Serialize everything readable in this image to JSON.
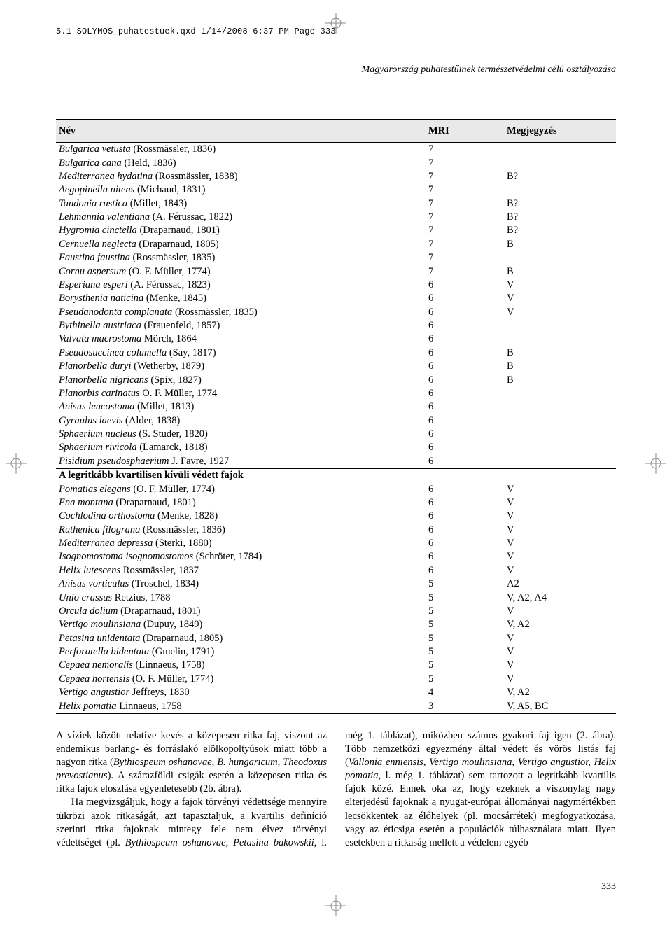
{
  "print_job_line": "5.1 SOLYMOS_puhatestuek.qxd  1/14/2008  6:37 PM  Page 333",
  "running_title": "Magyarország puhatestűinek természetvédelmi célú osztályozása",
  "page_number": "333",
  "table": {
    "headers": {
      "name": "Név",
      "mri": "MRI",
      "note": "Megjegyzés"
    },
    "rows": [
      {
        "name_it": "Bulgarica vetusta",
        "name_rest": " (Rossmässler, 1836)",
        "mri": "7",
        "note": ""
      },
      {
        "name_it": "Bulgarica cana",
        "name_rest": " (Held, 1836)",
        "mri": "7",
        "note": ""
      },
      {
        "name_it": "Mediterranea hydatina",
        "name_rest": " (Rossmässler, 1838)",
        "mri": "7",
        "note": "B?"
      },
      {
        "name_it": "Aegopinella nitens",
        "name_rest": " (Michaud, 1831)",
        "mri": "7",
        "note": ""
      },
      {
        "name_it": "Tandonia rustica",
        "name_rest": " (Millet, 1843)",
        "mri": "7",
        "note": "B?"
      },
      {
        "name_it": "Lehmannia valentiana",
        "name_rest": " (A. Férussac, 1822)",
        "mri": "7",
        "note": "B?"
      },
      {
        "name_it": "Hygromia cinctella",
        "name_rest": " (Draparnaud, 1801)",
        "mri": "7",
        "note": "B?"
      },
      {
        "name_it": "Cernuella neglecta",
        "name_rest": " (Draparnaud, 1805)",
        "mri": "7",
        "note": "B"
      },
      {
        "name_it": "Faustina faustina",
        "name_rest": " (Rossmässler, 1835)",
        "mri": "7",
        "note": ""
      },
      {
        "name_it": "Cornu aspersum",
        "name_rest": " (O. F. Müller, 1774)",
        "mri": "7",
        "note": "B"
      },
      {
        "name_it": "Esperiana esperi",
        "name_rest": " (A. Férussac, 1823)",
        "mri": "6",
        "note": "V"
      },
      {
        "name_it": "Borysthenia naticina",
        "name_rest": " (Menke, 1845)",
        "mri": "6",
        "note": "V"
      },
      {
        "name_it": "Pseudanodonta complanata",
        "name_rest": " (Rossmässler, 1835)",
        "mri": "6",
        "note": "V"
      },
      {
        "name_it": "Bythinella austriaca",
        "name_rest": " (Frauenfeld, 1857)",
        "mri": "6",
        "note": ""
      },
      {
        "name_it": "Valvata macrostoma",
        "name_rest": " Mörch, 1864",
        "mri": "6",
        "note": ""
      },
      {
        "name_it": "Pseudosuccinea columella",
        "name_rest": " (Say, 1817)",
        "mri": "6",
        "note": "B"
      },
      {
        "name_it": "Planorbella duryi",
        "name_rest": " (Wetherby, 1879)",
        "mri": "6",
        "note": "B"
      },
      {
        "name_it": "Planorbella nigricans",
        "name_rest": " (Spix, 1827)",
        "mri": "6",
        "note": "B"
      },
      {
        "name_it": "Planorbis carinatus",
        "name_rest": " O. F. Müller, 1774",
        "mri": "6",
        "note": ""
      },
      {
        "name_it": "Anisus leucostoma",
        "name_rest": " (Millet, 1813)",
        "mri": "6",
        "note": ""
      },
      {
        "name_it": "Gyraulus laevis",
        "name_rest": " (Alder, 1838)",
        "mri": "6",
        "note": ""
      },
      {
        "name_it": "Sphaerium nucleus",
        "name_rest": " (S. Studer, 1820)",
        "mri": "6",
        "note": ""
      },
      {
        "name_it": "Sphaerium rivicola",
        "name_rest": " (Lamarck, 1818)",
        "mri": "6",
        "note": ""
      },
      {
        "name_it": "Pisidium pseudosphaerium",
        "name_rest": " J. Favre, 1927",
        "mri": "6",
        "note": ""
      }
    ],
    "section_label": "A legritkább kvartilisen kívüli védett fajok",
    "rows2": [
      {
        "name_it": "Pomatias elegans",
        "name_rest": " (O. F. Müller, 1774)",
        "mri": "6",
        "note": "V"
      },
      {
        "name_it": "Ena montana",
        "name_rest": " (Draparnaud, 1801)",
        "mri": "6",
        "note": "V"
      },
      {
        "name_it": "Cochlodina orthostoma",
        "name_rest": " (Menke, 1828)",
        "mri": "6",
        "note": "V"
      },
      {
        "name_it": "Ruthenica filograna",
        "name_rest": " (Rossmässler, 1836)",
        "mri": "6",
        "note": "V"
      },
      {
        "name_it": "Mediterranea depressa",
        "name_rest": " (Sterki, 1880)",
        "mri": "6",
        "note": "V"
      },
      {
        "name_it": "Isognomostoma isognomostomos",
        "name_rest": " (Schröter, 1784)",
        "mri": "6",
        "note": "V"
      },
      {
        "name_it": "Helix lutescens",
        "name_rest": " Rossmässler, 1837",
        "mri": "6",
        "note": "V"
      },
      {
        "name_it": "Anisus vorticulus",
        "name_rest": " (Troschel, 1834)",
        "mri": "5",
        "note": "A2"
      },
      {
        "name_it": "Unio crassus",
        "name_rest": " Retzius, 1788",
        "mri": "5",
        "note": "V, A2, A4"
      },
      {
        "name_it": "Orcula dolium",
        "name_rest": " (Draparnaud, 1801)",
        "mri": "5",
        "note": "V"
      },
      {
        "name_it": "Vertigo moulinsiana",
        "name_rest": " (Dupuy, 1849)",
        "mri": "5",
        "note": "V, A2"
      },
      {
        "name_it": "Petasina unidentata",
        "name_rest": " (Draparnaud, 1805)",
        "mri": "5",
        "note": "V"
      },
      {
        "name_it": "Perforatella bidentata",
        "name_rest": " (Gmelin, 1791)",
        "mri": "5",
        "note": "V"
      },
      {
        "name_it": "Cepaea nemoralis",
        "name_rest": " (Linnaeus, 1758)",
        "mri": "5",
        "note": "V"
      },
      {
        "name_it": "Cepaea hortensis",
        "name_rest": " (O. F. Müller, 1774)",
        "mri": "5",
        "note": "V"
      },
      {
        "name_it": "Vertigo angustior",
        "name_rest": " Jeffreys, 1830",
        "mri": "4",
        "note": "V, A2"
      },
      {
        "name_it": "Helix pomatia",
        "name_rest": " Linnaeus, 1758",
        "mri": "3",
        "note": "V, A5, BC"
      }
    ]
  },
  "body": {
    "p1_a": "A víziek között relatíve kevés a közepesen ritka faj, viszont az endemikus barlang- és forráslakó elölkopoltyúsok miatt több a nagyon ritka (",
    "p1_it1": "Bythiospeum oshanovae, B. hungaricum, Theodoxus prevostianus",
    "p1_b": "). A szárazföldi csigák esetén a közepesen ritka és ritka fajok eloszlása egyenletesebb (2b. ábra).",
    "p2_a": "Ha megvizsgáljuk, hogy a fajok törvényi védettsége mennyire tükrözi azok ritkaságát, azt tapasztaljuk, a kvartilis definíció szerinti ritka fajoknak mintegy fele nem élvez törvényi védettséget (pl. ",
    "p2_it1": "Bythiospeum oshanovae, Petasina bakowskii",
    "p2_b": ", l. még 1. táblázat), miközben számos gyakori faj igen (2. ábra). Több nemzetközi egyezmény által védett és vörös listás faj (",
    "p2_it2": "Vallonia enniensis, Vertigo moulinsiana, Vertigo angustior, Helix pomatia",
    "p2_c": ", l. még 1. táblázat) sem tartozott a legritkább kvartilis fajok közé. Ennek oka az, hogy ezeknek a viszonylag nagy elterjedésű fajoknak a nyugat-európai állományai nagymértékben lecsökkentek az élőhelyek (pl. mocsárrétek) megfogyatkozása, vagy az éticsiga esetén a populációk túlhasználata miatt. Ilyen esetekben a ritkaság mellett a védelem egyéb"
  },
  "registration_mark": {
    "stroke": "#888888",
    "stroke_width": 1,
    "radius": 7,
    "arm": 13
  }
}
